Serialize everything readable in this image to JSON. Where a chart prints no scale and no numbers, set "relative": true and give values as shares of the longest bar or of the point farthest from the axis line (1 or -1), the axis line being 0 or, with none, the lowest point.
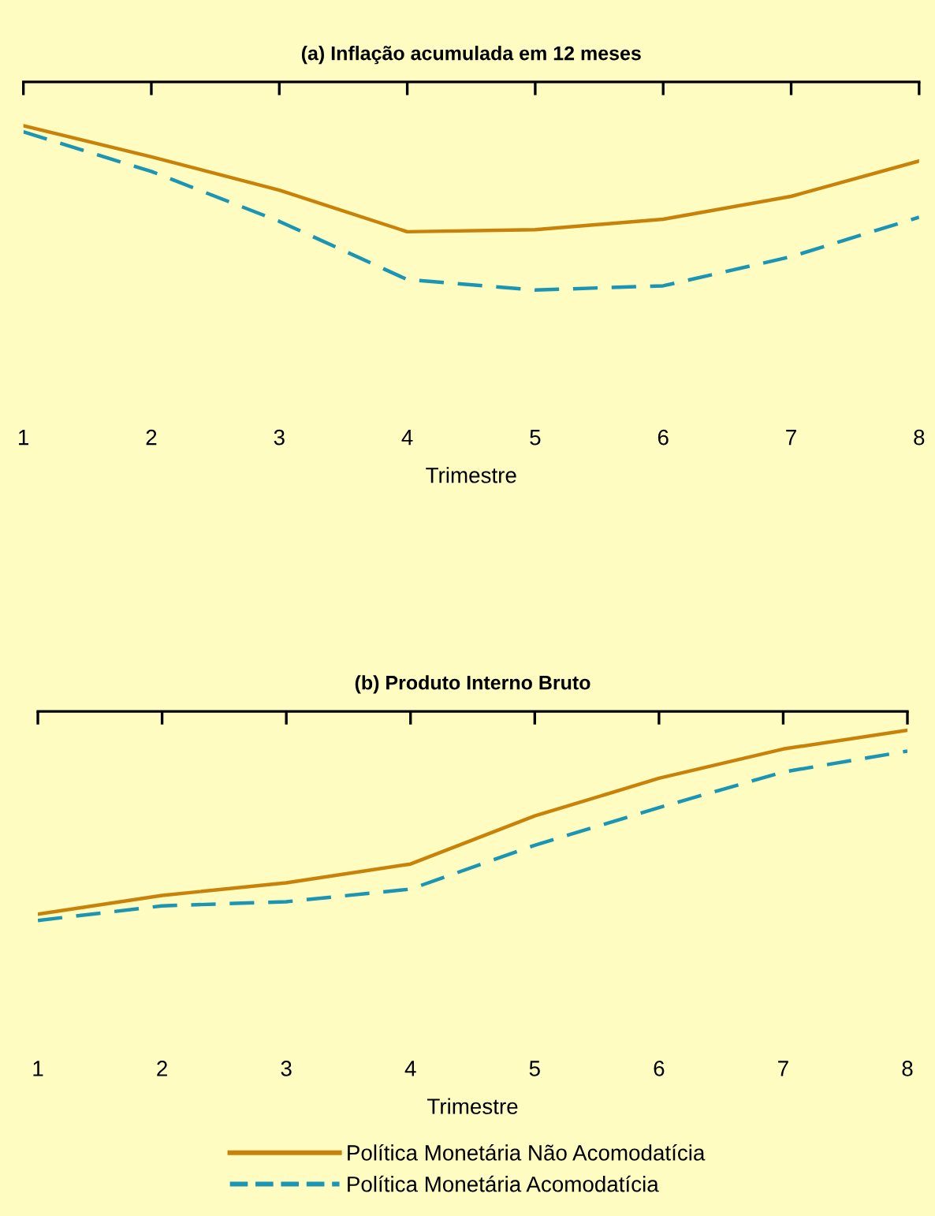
{
  "chart_data": [
    {
      "type": "line",
      "title": "(a) Inflação acumulada em 12 meses",
      "xlabel": "Trimestre",
      "relative": true,
      "categories": [
        "1",
        "2",
        "3",
        "4",
        "5",
        "6",
        "7",
        "8"
      ],
      "series": [
        {
          "color": "#c8820a",
          "values": [
            -0.21,
            -0.36,
            -0.52,
            -0.72,
            -0.71,
            -0.66,
            -0.55,
            -0.38
          ],
          "line_style": "solid"
        },
        {
          "color": "#1a96b4",
          "values": [
            -0.24,
            -0.43,
            -0.67,
            -0.95,
            -1,
            -0.98,
            -0.84,
            -0.65
          ],
          "line_style": "dashed"
        }
      ],
      "grid": false
    },
    {
      "type": "line",
      "title": "(b) Produto Interno Bruto",
      "xlabel": "Trimestre",
      "relative": true,
      "categories": [
        "1",
        "2",
        "3",
        "4",
        "5",
        "6",
        "7",
        "8"
      ],
      "legend": "bottom",
      "series": [
        {
          "name": "Política Monetária Não Acomodatícia",
          "color": "#c8820a",
          "values": [
            -0.97,
            -0.88,
            -0.82,
            -0.73,
            -0.5,
            -0.32,
            -0.18,
            -0.09
          ],
          "line_style": "solid"
        },
        {
          "name": "Política Monetária Acomodatícia",
          "color": "#1a96b4",
          "values": [
            -1,
            -0.93,
            -0.91,
            -0.85,
            -0.64,
            -0.46,
            -0.29,
            -0.19
          ],
          "line_style": "dashed"
        }
      ],
      "grid": false
    }
  ]
}
